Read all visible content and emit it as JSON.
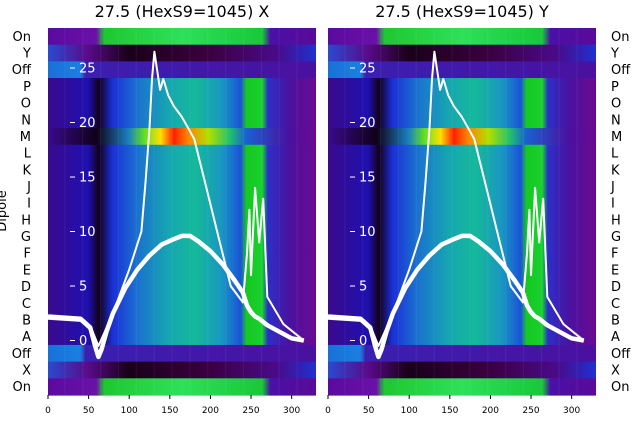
{
  "chart_data": [
    {
      "type": "heatmap",
      "title": "27.5 (HexS9=1045) X",
      "ylabel": "Dipole",
      "xlim": [
        0,
        330
      ],
      "x_ticks": [
        0,
        50,
        100,
        150,
        200,
        250,
        300
      ],
      "y_overlay_ticks": [
        0,
        5,
        10,
        15,
        20,
        25
      ],
      "y_overlay_range": [
        -5,
        28
      ],
      "row_labels": [
        "On",
        "Y",
        "Off",
        "P",
        "O",
        "N",
        "M",
        "L",
        "K",
        "J",
        "I",
        "H",
        "G",
        "F",
        "E",
        "D",
        "C",
        "B",
        "A",
        "Off",
        "X",
        "On"
      ],
      "series": [
        {
          "name": "",
          "x": [
            0,
            40,
            52,
            58,
            62,
            66,
            72,
            80,
            95,
            110,
            125,
            140,
            155,
            165,
            175,
            185,
            200,
            215,
            230,
            240,
            245,
            250,
            255,
            260,
            265,
            270,
            285,
            300,
            315
          ],
          "y": [
            2.2,
            2.0,
            1.2,
            -0.5,
            -1.5,
            -0.8,
            0.8,
            2.5,
            4.8,
            6.5,
            7.8,
            8.8,
            9.3,
            9.6,
            9.6,
            9.1,
            8.2,
            7.0,
            5.5,
            4.4,
            3.2,
            2.6,
            2.2,
            2.0,
            1.7,
            1.4,
            0.8,
            0.2,
            0.0
          ]
        },
        {
          "name": "",
          "x": [
            0,
            40,
            55,
            62,
            70,
            85,
            100,
            115,
            120,
            125,
            128,
            131,
            134,
            138,
            142,
            148,
            155,
            165,
            180,
            195,
            210,
            225,
            240,
            245,
            248,
            250,
            255,
            260,
            265,
            270,
            290,
            315
          ],
          "y": [
            2.0,
            1.8,
            0.8,
            -0.5,
            0.8,
            3.5,
            6.5,
            10,
            14.5,
            19.5,
            24,
            26.5,
            25,
            23,
            24,
            22.5,
            21.5,
            20.5,
            18.5,
            14,
            9.5,
            5.0,
            3.5,
            8,
            12,
            6,
            14,
            9,
            13,
            4,
            1.5,
            0.0
          ]
        }
      ]
    },
    {
      "type": "heatmap",
      "title": "27.5 (HexS9=1045) Y",
      "ylabel": "",
      "xlim": [
        0,
        330
      ],
      "x_ticks": [
        0,
        50,
        100,
        150,
        200,
        250,
        300
      ],
      "y_overlay_ticks": [
        0,
        5,
        10,
        15,
        20,
        25
      ],
      "y_overlay_range": [
        -5,
        28
      ],
      "row_labels": [
        "On",
        "Y",
        "Off",
        "P",
        "O",
        "N",
        "M",
        "L",
        "K",
        "J",
        "I",
        "H",
        "G",
        "F",
        "E",
        "D",
        "C",
        "B",
        "A",
        "Off",
        "X",
        "On"
      ],
      "series": [
        {
          "name": "",
          "x": [
            0,
            40,
            52,
            58,
            62,
            66,
            72,
            80,
            95,
            110,
            125,
            140,
            155,
            165,
            175,
            185,
            200,
            215,
            230,
            240,
            245,
            250,
            255,
            260,
            265,
            270,
            285,
            300,
            315
          ],
          "y": [
            2.2,
            2.0,
            1.2,
            -0.5,
            -1.5,
            -0.8,
            0.8,
            2.5,
            4.8,
            6.5,
            7.8,
            8.8,
            9.3,
            9.6,
            9.6,
            9.1,
            8.2,
            7.0,
            5.5,
            4.4,
            3.2,
            2.6,
            2.2,
            2.0,
            1.7,
            1.4,
            0.8,
            0.2,
            0.0
          ]
        },
        {
          "name": "",
          "x": [
            0,
            40,
            55,
            62,
            70,
            85,
            100,
            115,
            120,
            125,
            128,
            131,
            134,
            138,
            142,
            148,
            155,
            165,
            180,
            195,
            210,
            225,
            240,
            245,
            248,
            250,
            255,
            260,
            265,
            270,
            290,
            315
          ],
          "y": [
            2.0,
            1.8,
            0.8,
            -0.5,
            0.8,
            3.5,
            6.5,
            10,
            14.5,
            19.5,
            24,
            26.5,
            25,
            23,
            24,
            22.5,
            21.5,
            20.5,
            18.5,
            14,
            9.5,
            5.0,
            3.5,
            8,
            12,
            6,
            14,
            9,
            13,
            4,
            1.5,
            0.0
          ]
        }
      ]
    }
  ]
}
